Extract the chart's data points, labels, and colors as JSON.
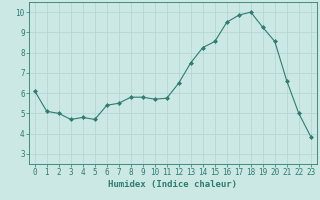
{
  "x": [
    0,
    1,
    2,
    3,
    4,
    5,
    6,
    7,
    8,
    9,
    10,
    11,
    12,
    13,
    14,
    15,
    16,
    17,
    18,
    19,
    20,
    21,
    22,
    23
  ],
  "y": [
    6.1,
    5.1,
    5.0,
    4.7,
    4.8,
    4.7,
    5.4,
    5.5,
    5.8,
    5.8,
    5.7,
    5.75,
    6.5,
    7.5,
    8.25,
    8.55,
    9.5,
    9.85,
    10.0,
    9.25,
    8.55,
    6.6,
    5.0,
    3.85
  ],
  "line_color": "#2e7d6e",
  "marker": "D",
  "marker_size": 2.0,
  "bg_color": "#cce8e4",
  "grid_color": "#b0d4d0",
  "xlabel": "Humidex (Indice chaleur)",
  "xlim": [
    -0.5,
    23.5
  ],
  "ylim": [
    2.5,
    10.5
  ],
  "yticks": [
    3,
    4,
    5,
    6,
    7,
    8,
    9,
    10
  ],
  "xticks": [
    0,
    1,
    2,
    3,
    4,
    5,
    6,
    7,
    8,
    9,
    10,
    11,
    12,
    13,
    14,
    15,
    16,
    17,
    18,
    19,
    20,
    21,
    22,
    23
  ],
  "label_color": "#2e7d6e",
  "tick_color": "#2e7d6e",
  "axis_color": "#2e7d6e",
  "font_size_label": 6.5,
  "font_size_tick": 5.5
}
